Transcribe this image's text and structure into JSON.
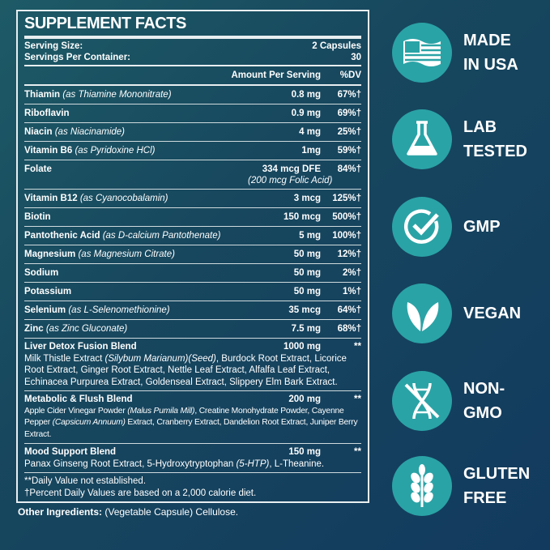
{
  "title": "SUPPLEMENT FACTS",
  "serving": {
    "size_label": "Serving Size:",
    "size": "2 Capsules",
    "per_label": "Servings Per Container:",
    "per": "30"
  },
  "header": {
    "amount": "Amount Per Serving",
    "dv": "%DV"
  },
  "rows": [
    {
      "name": "Thiamin",
      "note": "(as Thiamine Mononitrate)",
      "amount": "0.8 mg",
      "dv": "67%†"
    },
    {
      "name": "Riboflavin",
      "note": "",
      "amount": "0.9 mg",
      "dv": "69%†"
    },
    {
      "name": "Niacin",
      "note": "(as Niacinamide)",
      "amount": "4 mg",
      "dv": "25%†"
    },
    {
      "name": "Vitamin B6",
      "note": "(as Pyridoxine HCl)",
      "amount": "1mg",
      "dv": "59%†"
    },
    {
      "name": "Folate",
      "note": "",
      "amount": "334 mcg DFE",
      "amount2": "(200 mcg Folic Acid)",
      "dv": "84%†"
    },
    {
      "name": "Vitamin B12",
      "note": "(as Cyanocobalamin)",
      "amount": "3 mcg",
      "dv": "125%†"
    },
    {
      "name": "Biotin",
      "note": "",
      "amount": "150 mcg",
      "dv": "500%†"
    },
    {
      "name": "Pantothenic Acid",
      "note": "(as D-calcium Pantothenate)",
      "amount": "5 mg",
      "dv": "100%†"
    },
    {
      "name": "Magnesium",
      "note": "(as Magnesium Citrate)",
      "amount": "50 mg",
      "dv": "12%†"
    },
    {
      "name": "Sodium",
      "note": "",
      "amount": "50 mg",
      "dv": "2%†"
    },
    {
      "name": "Potassium",
      "note": "",
      "amount": "50 mg",
      "dv": "1%†"
    },
    {
      "name": "Selenium",
      "note": "(as L-Selenomethionine)",
      "amount": "35 mcg",
      "dv": "64%†"
    },
    {
      "name": "Zinc",
      "note": "(as Zinc Gluconate)",
      "amount": "7.5 mg",
      "dv": "68%†"
    }
  ],
  "blends": [
    {
      "name": "Liver Detox Fusion Blend",
      "amount": "1000 mg",
      "dv": "**",
      "a": "Milk Thistle Extract ",
      "b": "(Silybum Marianum)(Seed)",
      "c": ", Burdock Root Extract, Licorice Root Extract, Ginger Root Extract, Nettle Leaf Extract, Alfalfa Leaf Extract, Echinacea Purpurea Extract, Goldenseal Extract, Slippery Elm Bark Extract."
    },
    {
      "name": "Metabolic & Flush Blend",
      "amount": "200 mg",
      "dv": "**",
      "a": "Apple Cider Vinegar Powder ",
      "b": "(Malus Pumila Mill)",
      "c": ", Creatine Monohydrate Powder, Cayenne Pepper ",
      "d": "(Capsicum Annuum)",
      "e": " Extract, Cranberry Extract, Dandelion Root Extract, Juniper Berry Extract."
    },
    {
      "name": "Mood Support Blend",
      "amount": "150 mg",
      "dv": "**",
      "a": "Panax Ginseng Root Extract, 5-Hydroxytryptophan ",
      "b": "(5-HTP)",
      "c": ", L-Theanine."
    }
  ],
  "footnotes": [
    "**Daily Value not established.",
    "†Percent Daily Values are based on a 2,000 calorie diet."
  ],
  "other": {
    "label": "Other Ingredients:",
    "value": " (Vegetable Capsule) Cellulose."
  },
  "badges": [
    {
      "icon": "us-flag-icon",
      "l1": "MADE",
      "l2": "IN USA"
    },
    {
      "icon": "flask-icon",
      "l1": "LAB",
      "l2": "TESTED"
    },
    {
      "icon": "check-icon",
      "l1": "GMP",
      "l2": ""
    },
    {
      "icon": "leaf-icon",
      "l1": "VEGAN",
      "l2": ""
    },
    {
      "icon": "dna-crossed-icon",
      "l1": "NON-",
      "l2": "GMO"
    },
    {
      "icon": "wheat-icon",
      "l1": "GLUTEN",
      "l2": "FREE"
    }
  ],
  "colors": {
    "badge": "#2aa3a6",
    "background": "#163f5e"
  }
}
